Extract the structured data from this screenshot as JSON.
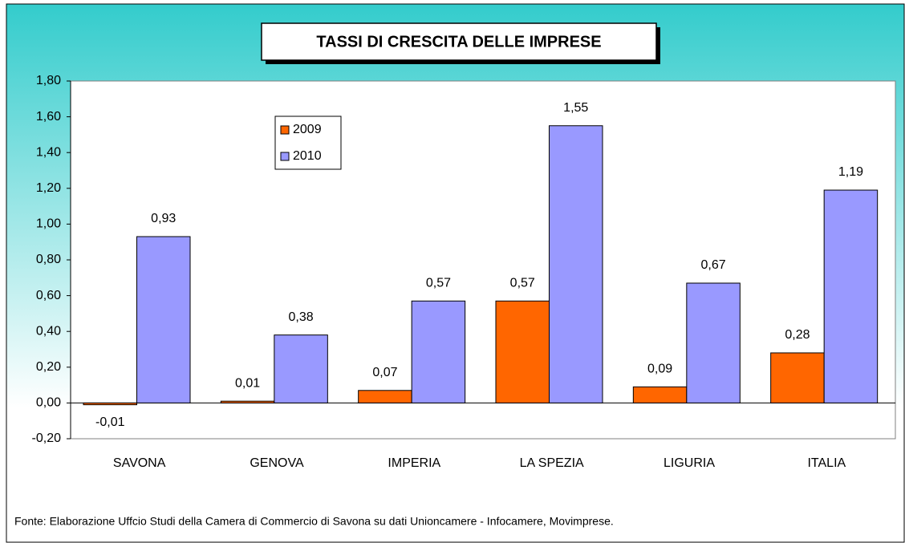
{
  "chart_data": {
    "type": "bar",
    "title": "TASSI DI CRESCITA DELLE IMPRESE",
    "categories": [
      "SAVONA",
      "GENOVA",
      "IMPERIA",
      "LA SPEZIA",
      "LIGURIA",
      "ITALIA"
    ],
    "series": [
      {
        "name": "2009",
        "color": "#ff6600",
        "values": [
          -0.01,
          0.01,
          0.07,
          0.57,
          0.09,
          0.28
        ],
        "value_labels": [
          "-0,01",
          "0,01",
          "0,07",
          "0,57",
          "0,09",
          "0,28"
        ]
      },
      {
        "name": "2010",
        "color": "#9999ff",
        "values": [
          0.93,
          0.38,
          0.57,
          1.55,
          0.67,
          1.19
        ],
        "value_labels": [
          "0,93",
          "0,38",
          "0,57",
          "1,55",
          "0,67",
          "1,19"
        ]
      }
    ],
    "ylim": [
      -0.2,
      1.8
    ],
    "yticks": [
      {
        "value": -0.2,
        "label": "-0,20"
      },
      {
        "value": 0,
        "label": "0,00"
      },
      {
        "value": 0.2,
        "label": "0,20"
      },
      {
        "value": 0.4,
        "label": "0,40"
      },
      {
        "value": 0.6,
        "label": "0,60"
      },
      {
        "value": 0.8,
        "label": "0,80"
      },
      {
        "value": 1.0,
        "label": "1,00"
      },
      {
        "value": 1.2,
        "label": "1,20"
      },
      {
        "value": 1.4,
        "label": "1,40"
      },
      {
        "value": 1.6,
        "label": "1,60"
      },
      {
        "value": 1.8,
        "label": "1,80"
      }
    ],
    "source": "Fonte: Elaborazione Uffcio Studi della Camera di Commercio di Savona su dati Unioncamere - Infocamere, Movimprese."
  }
}
